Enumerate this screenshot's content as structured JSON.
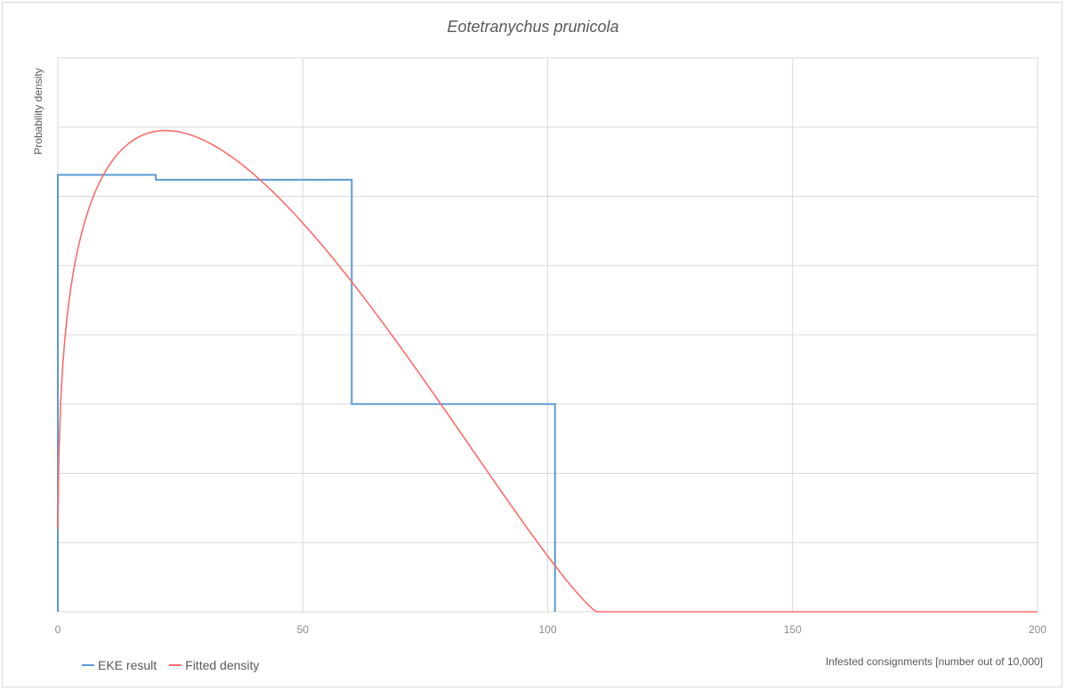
{
  "chart_data": {
    "type": "line",
    "title": "Eotetranychus prunicola",
    "xlabel": "Infested consignments [number out of 10,000]",
    "ylabel": "Probability density",
    "xlim": [
      0,
      200
    ],
    "ylim": [
      0,
      0.016
    ],
    "x_ticks": [
      "0",
      "50",
      "100",
      "150",
      "200"
    ],
    "y_grid_values": [
      0.002,
      0.004,
      0.006,
      0.008,
      0.01,
      0.012,
      0.014,
      0.016
    ],
    "y_tick_labels_shown": false,
    "grid": true,
    "legend_position": "bottom-left",
    "series": [
      {
        "name": "EKE result",
        "kind": "step",
        "color": "#5b9bd5",
        "points": [
          [
            0,
            0
          ],
          [
            0,
            0.01262
          ],
          [
            20,
            0.01262
          ],
          [
            20,
            0.01248
          ],
          [
            60,
            0.01248
          ],
          [
            60,
            0.006
          ],
          [
            101.5,
            0.006
          ],
          [
            101.5,
            0
          ]
        ]
      },
      {
        "name": "Fitted density",
        "kind": "curve",
        "color": "#ff6b6b",
        "model": "scaled-beta",
        "upper": 110,
        "alpha": 1.3,
        "beta": 2.2,
        "peak_x": 21.5,
        "peak_y": 0.0139,
        "start_y": 0.0024,
        "tail_to": 200
      }
    ]
  }
}
